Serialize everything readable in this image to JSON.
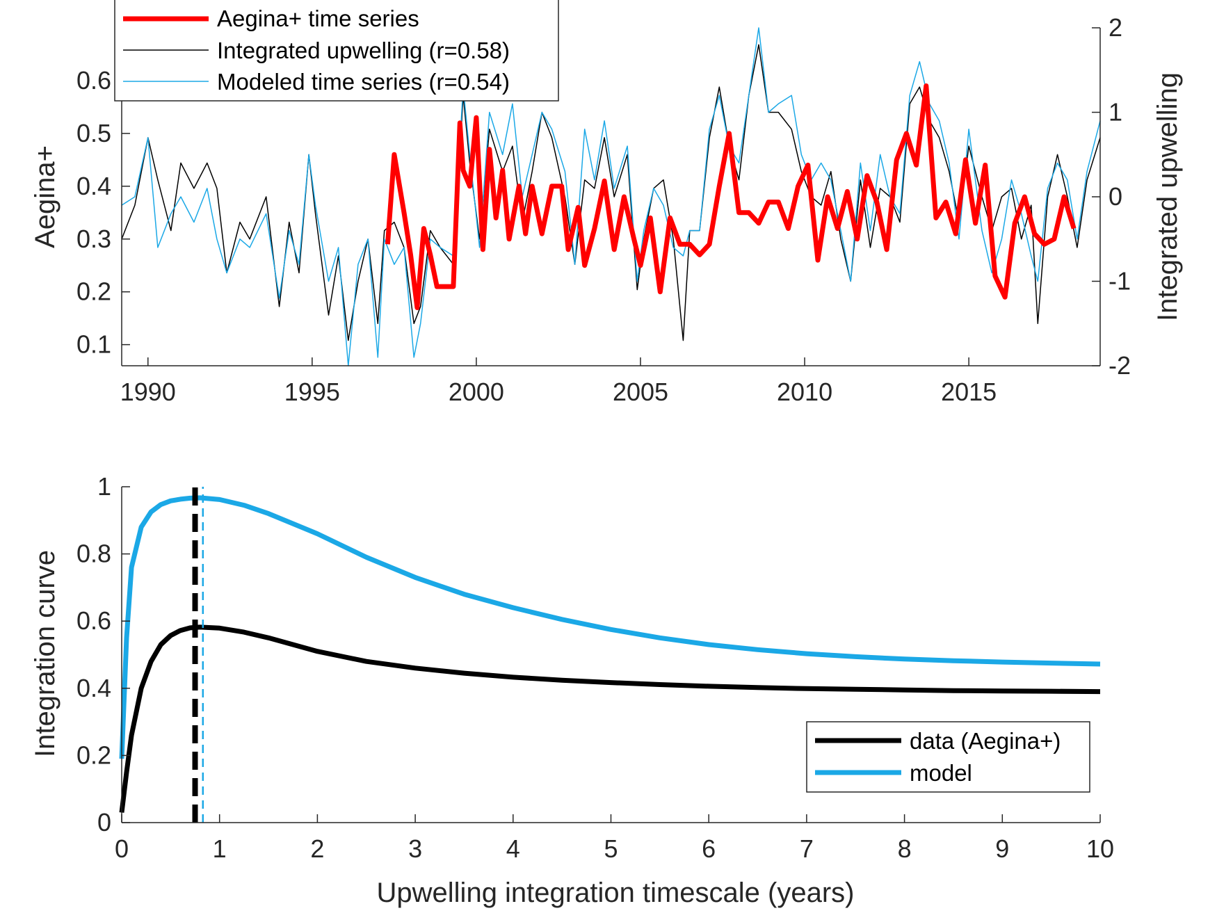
{
  "colors": {
    "aegina": "#ff0000",
    "upwelling": "#000000",
    "modeled": "#1ba8e6",
    "axis": "#262626"
  },
  "chart_data": [
    {
      "type": "line",
      "panel": "top",
      "title": "",
      "xlabel": "",
      "ylabel": "Aegina+",
      "ylabel_right": "Integrated upwelling",
      "xlim": [
        1989.2,
        2019.0
      ],
      "ylim": [
        0.06,
        0.7
      ],
      "ylim_right": [
        -2,
        2
      ],
      "xticks": [
        1990,
        1995,
        2000,
        2005,
        2010,
        2015
      ],
      "xtick_labels": [
        "1990",
        "1995",
        "2000",
        "2005",
        "2010",
        "2015"
      ],
      "yticks": [
        0.1,
        0.2,
        0.3,
        0.4,
        0.5,
        0.6
      ],
      "ytick_labels": [
        "0.1",
        "0.2",
        "0.3",
        "0.4",
        "0.5",
        "0.6"
      ],
      "yticks_right": [
        -2,
        -1,
        0,
        1,
        2
      ],
      "ytick_labels_right": [
        "-2",
        "-1",
        "0",
        "1",
        "2"
      ],
      "legend_position": "top-left",
      "series": [
        {
          "name": "Integrated upwelling (r=0.58)",
          "axis": "right",
          "x": [
            1989.2,
            1989.6,
            1990.0,
            1990.3,
            1990.7,
            1991.0,
            1991.4,
            1991.8,
            1992.1,
            1992.4,
            1992.8,
            1993.1,
            1993.6,
            1994.0,
            1994.3,
            1994.6,
            1994.9,
            1995.1,
            1995.5,
            1995.8,
            1996.1,
            1996.4,
            1996.7,
            1997.0,
            1997.2,
            1997.5,
            1997.8,
            1998.1,
            1998.3,
            1998.6,
            1998.9,
            1999.3,
            1999.6,
            1999.8,
            2000.1,
            2000.4,
            2000.8,
            2001.1,
            2001.4,
            2001.7,
            2002.0,
            2002.3,
            2002.7,
            2003.0,
            2003.3,
            2003.6,
            2003.9,
            2004.2,
            2004.6,
            2004.9,
            2005.1,
            2005.4,
            2005.7,
            2006.0,
            2006.3,
            2006.5,
            2006.8,
            2007.1,
            2007.4,
            2007.7,
            2008.0,
            2008.3,
            2008.6,
            2008.9,
            2009.2,
            2009.6,
            2009.9,
            2010.2,
            2010.5,
            2010.8,
            2011.1,
            2011.4,
            2011.7,
            2012.0,
            2012.3,
            2012.6,
            2012.9,
            2013.2,
            2013.5,
            2013.8,
            2014.1,
            2014.4,
            2014.7,
            2015.0,
            2015.4,
            2015.7,
            2016.0,
            2016.3,
            2016.6,
            2016.9,
            2017.1,
            2017.4,
            2017.7,
            2018.0,
            2018.3,
            2018.6,
            2019.0
          ],
          "y": [
            -0.5,
            -0.1,
            0.7,
            0.2,
            -0.4,
            0.4,
            0.1,
            0.4,
            0.1,
            -0.9,
            -0.3,
            -0.5,
            0.0,
            -1.3,
            -0.3,
            -0.9,
            0.5,
            -0.2,
            -1.4,
            -0.7,
            -1.7,
            -1.0,
            -0.5,
            -1.5,
            -0.4,
            -0.3,
            -0.6,
            -1.5,
            -1.3,
            -0.4,
            -0.6,
            -0.8,
            1.2,
            0.4,
            -0.5,
            0.8,
            0.3,
            0.6,
            -0.3,
            0.3,
            1.0,
            0.7,
            0.0,
            -0.8,
            0.2,
            0.1,
            0.7,
            0.0,
            0.5,
            -1.1,
            -0.5,
            0.1,
            0.2,
            -0.5,
            -1.7,
            -0.4,
            -0.4,
            0.7,
            1.3,
            0.6,
            0.2,
            1.2,
            1.8,
            1.0,
            1.0,
            0.8,
            0.3,
            0.0,
            -0.1,
            0.3,
            -0.5,
            -1.0,
            0.2,
            -0.6,
            0.1,
            0.0,
            -0.3,
            1.1,
            1.3,
            0.9,
            0.7,
            0.3,
            -0.3,
            0.6,
            0.0,
            -0.4,
            0.0,
            0.1,
            -0.5,
            -0.1,
            -1.5,
            0.0,
            0.5,
            0.0,
            -0.6,
            0.2,
            0.7
          ]
        },
        {
          "name": "Modeled time series (r=0.54)",
          "axis": "right",
          "x": [
            1989.2,
            1989.6,
            1990.0,
            1990.3,
            1990.7,
            1991.0,
            1991.4,
            1991.8,
            1992.1,
            1992.4,
            1992.8,
            1993.1,
            1993.6,
            1994.0,
            1994.3,
            1994.6,
            1994.9,
            1995.1,
            1995.5,
            1995.8,
            1996.1,
            1996.4,
            1996.7,
            1997.0,
            1997.2,
            1997.5,
            1997.8,
            1998.1,
            1998.3,
            1998.6,
            1998.9,
            1999.3,
            1999.6,
            1999.8,
            2000.1,
            2000.4,
            2000.8,
            2001.1,
            2001.4,
            2001.7,
            2002.0,
            2002.3,
            2002.7,
            2003.0,
            2003.3,
            2003.6,
            2003.9,
            2004.2,
            2004.6,
            2004.9,
            2005.1,
            2005.4,
            2005.7,
            2006.0,
            2006.3,
            2006.5,
            2006.8,
            2007.1,
            2007.4,
            2007.7,
            2008.0,
            2008.3,
            2008.6,
            2008.9,
            2009.2,
            2009.6,
            2009.9,
            2010.2,
            2010.5,
            2010.8,
            2011.1,
            2011.4,
            2011.7,
            2012.0,
            2012.3,
            2012.6,
            2012.9,
            2013.2,
            2013.5,
            2013.8,
            2014.1,
            2014.4,
            2014.7,
            2015.0,
            2015.4,
            2015.7,
            2016.0,
            2016.3,
            2016.6,
            2016.9,
            2017.1,
            2017.4,
            2017.7,
            2018.0,
            2018.3,
            2018.6,
            2019.0
          ],
          "y": [
            -0.1,
            0.0,
            0.7,
            -0.6,
            -0.2,
            0.0,
            -0.3,
            0.1,
            -0.5,
            -0.9,
            -0.5,
            -0.6,
            -0.2,
            -1.2,
            -0.4,
            -0.8,
            0.5,
            -0.1,
            -1.0,
            -0.6,
            -2.0,
            -0.8,
            -0.5,
            -1.9,
            -0.5,
            -0.8,
            -0.6,
            -1.9,
            -1.5,
            -0.5,
            -0.6,
            -0.7,
            1.3,
            0.5,
            -0.6,
            1.0,
            0.5,
            1.1,
            0.0,
            0.5,
            1.0,
            0.8,
            0.3,
            -0.8,
            0.8,
            0.2,
            0.9,
            0.1,
            0.6,
            -1.0,
            -0.4,
            0.1,
            -0.1,
            -0.6,
            -0.7,
            -0.4,
            -0.4,
            0.8,
            1.2,
            0.6,
            0.4,
            1.2,
            2.0,
            1.0,
            1.1,
            1.2,
            0.5,
            0.2,
            0.4,
            0.2,
            -0.4,
            -1.0,
            0.4,
            -0.4,
            0.5,
            0.0,
            -0.2,
            1.2,
            1.6,
            1.1,
            0.9,
            0.4,
            -0.5,
            0.8,
            -0.4,
            -0.9,
            -0.5,
            0.2,
            -0.2,
            -0.7,
            -1.0,
            0.1,
            0.4,
            0.2,
            -0.5,
            0.3,
            0.9
          ]
        },
        {
          "name": "Aegina+ time series",
          "axis": "left",
          "x": [
            1997.3,
            1997.5,
            1997.8,
            1998.0,
            1998.2,
            1998.4,
            1998.6,
            1998.8,
            1999.0,
            1999.3,
            1999.5,
            1999.6,
            1999.8,
            2000.0,
            2000.2,
            2000.4,
            2000.6,
            2000.8,
            2001.0,
            2001.3,
            2001.5,
            2001.7,
            2002.0,
            2002.3,
            2002.6,
            2002.8,
            2003.1,
            2003.3,
            2003.6,
            2003.9,
            2004.2,
            2004.5,
            2004.8,
            2005.0,
            2005.3,
            2005.6,
            2005.9,
            2006.2,
            2006.5,
            2006.8,
            2007.1,
            2007.4,
            2007.7,
            2008.0,
            2008.3,
            2008.6,
            2008.9,
            2009.2,
            2009.5,
            2009.8,
            2010.1,
            2010.4,
            2010.7,
            2011.0,
            2011.3,
            2011.6,
            2011.9,
            2012.2,
            2012.5,
            2012.8,
            2013.1,
            2013.4,
            2013.7,
            2014.0,
            2014.3,
            2014.6,
            2014.9,
            2015.2,
            2015.5,
            2015.8,
            2016.1,
            2016.4,
            2016.7,
            2017.0,
            2017.3,
            2017.6,
            2017.9,
            2018.2
          ],
          "y": [
            0.29,
            0.46,
            0.35,
            0.27,
            0.17,
            0.32,
            0.27,
            0.21,
            0.21,
            0.21,
            0.52,
            0.43,
            0.4,
            0.53,
            0.28,
            0.47,
            0.34,
            0.43,
            0.3,
            0.4,
            0.31,
            0.4,
            0.31,
            0.4,
            0.4,
            0.28,
            0.36,
            0.25,
            0.32,
            0.41,
            0.28,
            0.38,
            0.3,
            0.25,
            0.34,
            0.2,
            0.34,
            0.29,
            0.29,
            0.27,
            0.29,
            0.4,
            0.5,
            0.35,
            0.35,
            0.33,
            0.37,
            0.37,
            0.32,
            0.4,
            0.44,
            0.26,
            0.38,
            0.32,
            0.39,
            0.3,
            0.42,
            0.37,
            0.28,
            0.45,
            0.5,
            0.44,
            0.59,
            0.34,
            0.37,
            0.31,
            0.45,
            0.33,
            0.44,
            0.23,
            0.19,
            0.33,
            0.38,
            0.31,
            0.29,
            0.3,
            0.38,
            0.32
          ]
        }
      ]
    },
    {
      "type": "line",
      "panel": "bottom",
      "title": "",
      "xlabel": "Upwelling integration timescale (years)",
      "ylabel": "Integration curve",
      "xlim": [
        0,
        10
      ],
      "ylim": [
        0,
        1
      ],
      "xticks": [
        0,
        1,
        2,
        3,
        4,
        5,
        6,
        7,
        8,
        9,
        10
      ],
      "xtick_labels": [
        "0",
        "1",
        "2",
        "3",
        "4",
        "5",
        "6",
        "7",
        "8",
        "9",
        "10"
      ],
      "yticks": [
        0,
        0.2,
        0.4,
        0.6,
        0.8,
        1
      ],
      "ytick_labels": [
        "0",
        "0.2",
        "0.4",
        "0.6",
        "0.8",
        "1"
      ],
      "legend_position": "bottom-right",
      "series": [
        {
          "name": "data (Aegina+)",
          "x": [
            0.0,
            0.05,
            0.1,
            0.2,
            0.3,
            0.4,
            0.5,
            0.6,
            0.7,
            0.8,
            1.0,
            1.25,
            1.5,
            2.0,
            2.5,
            3.0,
            3.5,
            4.0,
            4.5,
            5.0,
            5.5,
            6.0,
            6.5,
            7.0,
            7.5,
            8.0,
            8.5,
            9.0,
            9.5,
            10.0
          ],
          "y": [
            0.03,
            0.15,
            0.26,
            0.4,
            0.48,
            0.53,
            0.557,
            0.572,
            0.58,
            0.582,
            0.579,
            0.567,
            0.55,
            0.51,
            0.48,
            0.46,
            0.445,
            0.433,
            0.424,
            0.417,
            0.411,
            0.406,
            0.402,
            0.399,
            0.397,
            0.395,
            0.393,
            0.392,
            0.391,
            0.39
          ]
        },
        {
          "name": "model",
          "x": [
            0.0,
            0.05,
            0.1,
            0.2,
            0.3,
            0.4,
            0.5,
            0.6,
            0.7,
            0.8,
            1.0,
            1.25,
            1.5,
            2.0,
            2.5,
            3.0,
            3.5,
            4.0,
            4.5,
            5.0,
            5.5,
            6.0,
            6.5,
            7.0,
            7.5,
            8.0,
            8.5,
            9.0,
            9.5,
            10.0
          ],
          "y": [
            0.19,
            0.55,
            0.76,
            0.88,
            0.925,
            0.947,
            0.958,
            0.963,
            0.966,
            0.967,
            0.962,
            0.945,
            0.92,
            0.86,
            0.79,
            0.73,
            0.68,
            0.64,
            0.605,
            0.575,
            0.55,
            0.53,
            0.515,
            0.503,
            0.494,
            0.487,
            0.482,
            0.478,
            0.475,
            0.472
          ]
        }
      ],
      "annotations": [
        {
          "type": "vline",
          "x": 0.75,
          "style": "dashed",
          "series": "data (Aegina+)"
        },
        {
          "type": "vline",
          "x": 0.83,
          "style": "dashed",
          "series": "model"
        }
      ]
    }
  ]
}
